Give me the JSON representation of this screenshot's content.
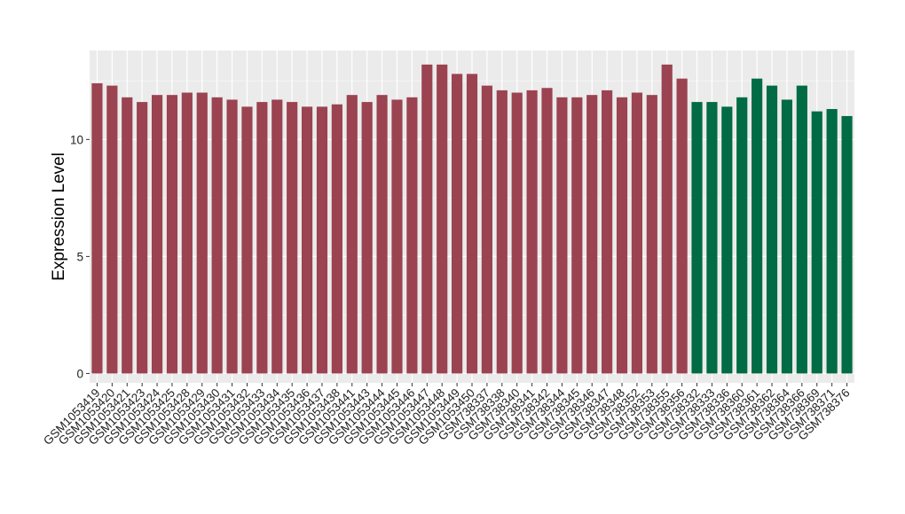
{
  "chart_data": {
    "type": "bar",
    "title": "",
    "xlabel": "",
    "ylabel": "Expression Level",
    "ylim": [
      -0.4,
      13.8
    ],
    "yticks": [
      0,
      5,
      10
    ],
    "grid": true,
    "legend": "none",
    "categories": [
      "GSM1053419",
      "GSM1053420",
      "GSM1053421",
      "GSM1053423",
      "GSM1053424",
      "GSM1053425",
      "GSM1053428",
      "GSM1053429",
      "GSM1053430",
      "GSM1053431",
      "GSM1053432",
      "GSM1053433",
      "GSM1053434",
      "GSM1053435",
      "GSM1053436",
      "GSM1053437",
      "GSM1053438",
      "GSM1053441",
      "GSM1053443",
      "GSM1053444",
      "GSM1053445",
      "GSM1053446",
      "GSM1053447",
      "GSM1053448",
      "GSM1053449",
      "GSM1053450",
      "GSM738337",
      "GSM738338",
      "GSM738340",
      "GSM738341",
      "GSM738342",
      "GSM738344",
      "GSM738345",
      "GSM738346",
      "GSM738347",
      "GSM738348",
      "GSM738352",
      "GSM738353",
      "GSM738355",
      "GSM738356",
      "GSM738332",
      "GSM738333",
      "GSM738336",
      "GSM738360",
      "GSM738361",
      "GSM738362",
      "GSM738364",
      "GSM738366",
      "GSM738369",
      "GSM738371",
      "GSM738376"
    ],
    "values": [
      12.4,
      12.3,
      11.8,
      11.6,
      11.9,
      11.9,
      12.0,
      12.0,
      11.8,
      11.7,
      11.4,
      11.6,
      11.7,
      11.6,
      11.4,
      11.4,
      11.5,
      11.9,
      11.6,
      11.9,
      11.7,
      11.8,
      13.2,
      13.2,
      12.8,
      12.8,
      12.3,
      12.1,
      12.0,
      12.1,
      12.2,
      11.8,
      11.8,
      11.9,
      12.1,
      11.8,
      12.0,
      11.9,
      13.2,
      12.6,
      11.6,
      11.6,
      11.4,
      11.8,
      12.6,
      12.3,
      11.7,
      12.3,
      11.2,
      11.3,
      11.0
    ],
    "groups": [
      0,
      0,
      0,
      0,
      0,
      0,
      0,
      0,
      0,
      0,
      0,
      0,
      0,
      0,
      0,
      0,
      0,
      0,
      0,
      0,
      0,
      0,
      0,
      0,
      0,
      0,
      0,
      0,
      0,
      0,
      0,
      0,
      0,
      0,
      0,
      0,
      0,
      0,
      0,
      0,
      1,
      1,
      1,
      1,
      1,
      1,
      1,
      1,
      1,
      1,
      1
    ],
    "colors": [
      "#9b4350",
      "#006b44"
    ],
    "panel_background": "#ebebeb",
    "gridline_color": "#ffffff"
  }
}
